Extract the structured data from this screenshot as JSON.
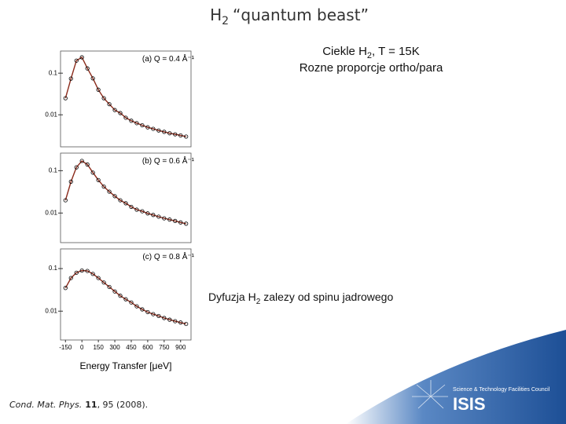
{
  "title": {
    "main": "H",
    "sub": "2",
    "rest": "“quantum beast”"
  },
  "notes": {
    "line1": {
      "main": "Ciekle H",
      "sub": "2",
      "rest": ", T = 15K"
    },
    "line2": "Rozne proporcje ortho/para",
    "line3": {
      "main": "Dyfuzja H",
      "sub": "2",
      "rest": "zalezy od spinu jadrowego"
    }
  },
  "citation": {
    "journal": "Cond. Mat. Phys.",
    "volume": "11",
    "rest": ", 95 (2008)."
  },
  "logo": {
    "org": "Science & Technology Facilities Council",
    "name": "ISIS"
  },
  "chart_data": [
    {
      "type": "scatter",
      "label": "(a) Q = 0.4 Å⁻¹",
      "x": [
        -150,
        -100,
        -50,
        0,
        50,
        100,
        150,
        200,
        250,
        300,
        350,
        400,
        450,
        500,
        550,
        600,
        650,
        700,
        750,
        800,
        850,
        900,
        950
      ],
      "series": [
        {
          "color": "#000000",
          "values": [
            0.025,
            0.074,
            0.2,
            0.24,
            0.13,
            0.075,
            0.04,
            0.025,
            0.018,
            0.013,
            0.011,
            0.0085,
            0.0072,
            0.0063,
            0.0056,
            0.005,
            0.0046,
            0.0042,
            0.0039,
            0.0036,
            0.0034,
            0.0032,
            0.003
          ]
        }
      ],
      "fit_color": "#8b2a1a",
      "xlim": [
        -195,
        995
      ],
      "ylim": [
        0.0017,
        0.34
      ],
      "yticks": [
        0.1,
        0.01
      ],
      "log_y": true
    },
    {
      "type": "scatter",
      "label": "(b) Q = 0.6 Å⁻¹",
      "x": [
        -150,
        -100,
        -50,
        0,
        50,
        100,
        150,
        200,
        250,
        300,
        350,
        400,
        450,
        500,
        550,
        600,
        650,
        700,
        750,
        800,
        850,
        900,
        950
      ],
      "series": [
        {
          "color": "#000000",
          "values": [
            0.02,
            0.055,
            0.12,
            0.17,
            0.14,
            0.09,
            0.06,
            0.042,
            0.032,
            0.025,
            0.02,
            0.017,
            0.014,
            0.012,
            0.011,
            0.0098,
            0.009,
            0.0082,
            0.0075,
            0.007,
            0.0065,
            0.006,
            0.0056
          ]
        }
      ],
      "fit_color": "#8b2a1a",
      "xlim": [
        -195,
        995
      ],
      "ylim": [
        0.002,
        0.26
      ],
      "yticks": [
        0.1,
        0.01
      ],
      "log_y": true
    },
    {
      "type": "scatter",
      "label": "(c) Q = 0.8 Å⁻¹",
      "x": [
        -150,
        -100,
        -50,
        0,
        50,
        100,
        150,
        200,
        250,
        300,
        350,
        400,
        450,
        500,
        550,
        600,
        650,
        700,
        750,
        800,
        850,
        900,
        950
      ],
      "series": [
        {
          "color": "#000000",
          "values": [
            0.035,
            0.06,
            0.08,
            0.09,
            0.088,
            0.075,
            0.06,
            0.047,
            0.037,
            0.029,
            0.023,
            0.019,
            0.016,
            0.013,
            0.011,
            0.0095,
            0.0085,
            0.0077,
            0.0069,
            0.0063,
            0.0058,
            0.0054,
            0.005
          ]
        }
      ],
      "fit_color": "#8b2a1a",
      "xlim": [
        -195,
        995
      ],
      "ylim": [
        0.0021,
        0.29
      ],
      "yticks": [
        0.1,
        0.01
      ],
      "log_y": true,
      "xticks": [
        -150,
        0,
        150,
        300,
        450,
        600,
        750,
        900
      ],
      "xlabel": "Energy Transfer [μeV]"
    }
  ]
}
